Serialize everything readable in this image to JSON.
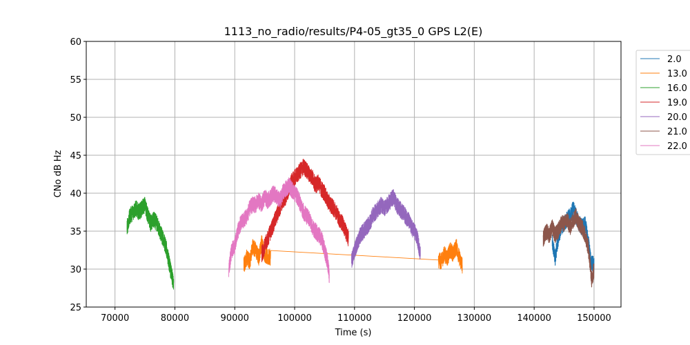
{
  "chart_data": {
    "type": "line",
    "title": "1113_no_radio/results/P4-05_gt35_0 GPS L2(E)",
    "xlabel": "Time (s)",
    "ylabel": "CNo dB Hz",
    "xlim": [
      65200,
      154500
    ],
    "ylim": [
      25,
      60
    ],
    "xticks": [
      70000,
      80000,
      90000,
      100000,
      110000,
      120000,
      130000,
      140000,
      150000
    ],
    "xtick_labels": [
      "70000",
      "80000",
      "90000",
      "100000",
      "110000",
      "120000",
      "130000",
      "140000",
      "150000"
    ],
    "yticks": [
      25,
      30,
      35,
      40,
      45,
      50,
      55,
      60
    ],
    "ytick_labels": [
      "25",
      "30",
      "35",
      "40",
      "45",
      "50",
      "55",
      "60"
    ],
    "grid": true,
    "legend_position": "outside-top-right",
    "series": [
      {
        "name": "2.0",
        "color": "#1f77b4",
        "x": [
          143000,
          143500,
          144000,
          144500,
          145000,
          145500,
          146000,
          146500,
          147000,
          147500,
          148000,
          148500,
          149000,
          149500,
          150000
        ],
        "y": [
          33.5,
          31.5,
          34.0,
          35.5,
          36.0,
          36.5,
          37.0,
          38.0,
          37.0,
          36.0,
          35.5,
          36.0,
          34.0,
          31.0,
          30.5
        ]
      },
      {
        "name": "13.0",
        "color": "#ff7f0e",
        "x": [
          91500,
          92000,
          92500,
          93000,
          93500,
          94000,
          94500,
          95000,
          95500,
          96000,
          124000,
          124500,
          125000,
          125500,
          126000,
          126500,
          127000,
          127500,
          128000
        ],
        "y": [
          30.5,
          31.5,
          31.0,
          33.0,
          32.5,
          31.5,
          33.5,
          32.0,
          31.5,
          31.6,
          31.2,
          31.0,
          32.0,
          31.5,
          32.5,
          32.0,
          33.0,
          31.5,
          30.5
        ]
      },
      {
        "name": "16.0",
        "color": "#2ca02c",
        "x": [
          72000,
          72500,
          73000,
          73500,
          74000,
          74500,
          75000,
          75500,
          76000,
          76500,
          77000,
          77500,
          78000,
          78500,
          79000,
          79500,
          79800
        ],
        "y": [
          35.5,
          37.0,
          37.5,
          38.0,
          37.5,
          38.0,
          38.5,
          37.0,
          36.0,
          36.5,
          36.0,
          35.0,
          34.0,
          33.0,
          31.0,
          29.0,
          28.0
        ]
      },
      {
        "name": "19.0",
        "color": "#d62728",
        "x": [
          94500,
          95000,
          95500,
          96000,
          96500,
          97000,
          97500,
          98000,
          98500,
          99000,
          99500,
          100000,
          100500,
          101000,
          101500,
          102000,
          102500,
          103000,
          103500,
          104000,
          104500,
          105000,
          105500,
          106000,
          106500,
          107000,
          107500,
          108000,
          108500,
          109000
        ],
        "y": [
          32.0,
          33.0,
          34.0,
          35.0,
          36.0,
          37.0,
          38.0,
          39.0,
          39.5,
          40.5,
          41.5,
          42.0,
          42.5,
          43.0,
          43.5,
          43.0,
          42.5,
          42.0,
          41.0,
          41.5,
          40.5,
          40.0,
          39.0,
          38.5,
          38.0,
          37.5,
          36.5,
          36.0,
          35.0,
          34.0
        ]
      },
      {
        "name": "20.0",
        "color": "#9467bd",
        "x": [
          109500,
          110000,
          110500,
          111000,
          111500,
          112000,
          112500,
          113000,
          113500,
          114000,
          114500,
          115000,
          115500,
          116000,
          116500,
          117000,
          117500,
          118000,
          118500,
          119000,
          119500,
          120000,
          120500,
          121000
        ],
        "y": [
          31.0,
          32.5,
          33.5,
          34.5,
          35.0,
          35.5,
          36.0,
          37.0,
          37.5,
          38.0,
          38.5,
          38.0,
          38.5,
          39.0,
          39.5,
          38.5,
          38.0,
          37.5,
          37.0,
          36.5,
          35.5,
          35.0,
          34.0,
          32.0
        ]
      },
      {
        "name": "21.0",
        "color": "#8c564b",
        "x": [
          141500,
          142000,
          142500,
          143000,
          143500,
          144000,
          144500,
          145000,
          145500,
          146000,
          146500,
          147000,
          147500,
          148000,
          148500,
          149000,
          149300,
          149600,
          150000
        ],
        "y": [
          34.0,
          35.0,
          34.5,
          35.5,
          34.5,
          35.0,
          36.0,
          36.0,
          36.5,
          35.5,
          36.5,
          37.0,
          36.0,
          35.5,
          34.5,
          33.0,
          31.0,
          28.5,
          30.0
        ]
      },
      {
        "name": "22.0",
        "color": "#e377c2",
        "x": [
          89000,
          89500,
          90000,
          90500,
          91000,
          91500,
          92000,
          92500,
          93000,
          93500,
          94000,
          94500,
          95000,
          95500,
          96000,
          96500,
          97000,
          97500,
          98000,
          98500,
          99000,
          99500,
          100000,
          100500,
          101000,
          101500,
          102000,
          102500,
          103000,
          103500,
          104000,
          104500,
          105000,
          105500,
          105800
        ],
        "y": [
          30.0,
          32.5,
          33.0,
          35.0,
          36.0,
          36.5,
          37.0,
          38.0,
          38.5,
          38.5,
          39.0,
          38.5,
          39.5,
          39.0,
          39.5,
          40.0,
          39.5,
          39.0,
          40.0,
          40.5,
          41.0,
          40.5,
          40.0,
          39.5,
          38.5,
          37.5,
          37.0,
          36.5,
          35.5,
          35.0,
          34.5,
          34.0,
          32.5,
          31.0,
          29.0
        ]
      }
    ]
  }
}
